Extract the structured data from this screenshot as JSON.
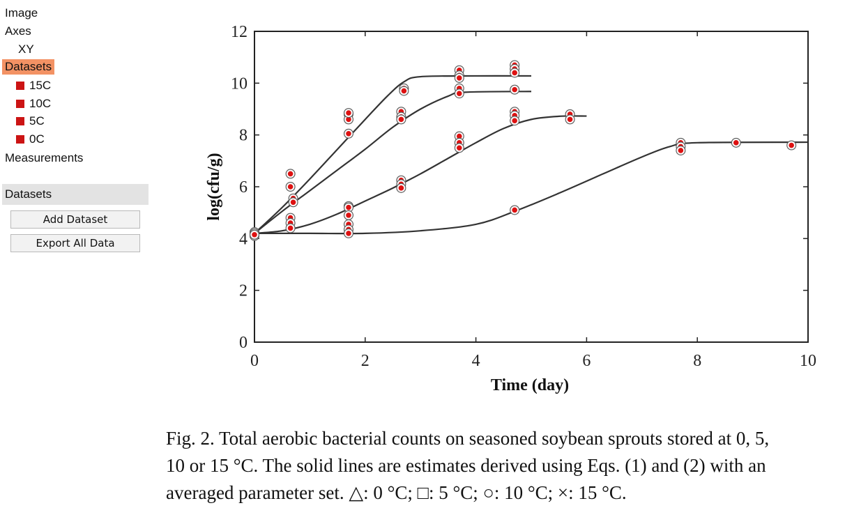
{
  "sidebar": {
    "tree": {
      "image": "Image",
      "axes": "Axes",
      "xy": "XY",
      "datasets": "Datasets",
      "dataset_items": [
        "15C",
        "10C",
        "5C",
        "0C"
      ],
      "measurements": "Measurements"
    },
    "panel_title": "Datasets",
    "add_dataset": "Add Dataset",
    "export_all": "Export All Data",
    "accent_color": "#f39264",
    "dataset_color": "#cc1414"
  },
  "caption": {
    "line1": "Fig. 2. Total aerobic bacterial counts on seasoned soybean sprouts stored at 0, 5,",
    "line2": "10 or 15 °C. The solid lines are estimates derived using Eqs. (1) and (2) with an",
    "line3": "averaged parameter set. △: 0 °C; □: 5 °C; ○: 10 °C; ×: 15 °C."
  },
  "chart_data": {
    "type": "scatter",
    "xlabel": "Time (day)",
    "ylabel": "log(cfu/g)",
    "xlim": [
      0,
      10
    ],
    "ylim": [
      0,
      12
    ],
    "x_ticks": [
      0,
      2,
      4,
      6,
      8,
      10
    ],
    "y_ticks": [
      0,
      2,
      4,
      6,
      8,
      10,
      12
    ],
    "point_color": "#dd1111",
    "series": [
      {
        "id": "15C",
        "curve": [
          [
            0,
            4.2
          ],
          [
            0.5,
            5.2
          ],
          [
            1,
            6.3
          ],
          [
            1.5,
            7.45
          ],
          [
            2,
            8.6
          ],
          [
            2.4,
            9.5
          ],
          [
            2.7,
            10.05
          ],
          [
            3,
            10.25
          ],
          [
            4,
            10.28
          ],
          [
            5,
            10.28
          ]
        ],
        "points": [
          [
            0,
            4.1
          ],
          [
            0,
            4.2
          ],
          [
            0.65,
            6.5
          ],
          [
            0.65,
            6.0
          ],
          [
            1.7,
            8.8
          ],
          [
            1.7,
            8.6
          ],
          [
            1.7,
            8.05
          ],
          [
            2.7,
            9.8
          ],
          [
            2.7,
            9.7
          ],
          [
            3.7,
            10.5
          ],
          [
            3.7,
            10.3
          ],
          [
            3.7,
            10.2
          ],
          [
            4.7,
            10.7
          ],
          [
            4.7,
            10.55
          ],
          [
            4.7,
            10.4
          ]
        ]
      },
      {
        "id": "10C",
        "curve": [
          [
            0,
            4.2
          ],
          [
            0.5,
            5.05
          ],
          [
            1,
            5.85
          ],
          [
            1.5,
            6.65
          ],
          [
            2,
            7.45
          ],
          [
            2.5,
            8.3
          ],
          [
            3,
            9.0
          ],
          [
            3.5,
            9.5
          ],
          [
            3.8,
            9.65
          ],
          [
            5,
            9.68
          ]
        ],
        "points": [
          [
            0,
            4.25
          ],
          [
            0.7,
            5.55
          ],
          [
            0.7,
            5.4
          ],
          [
            1.7,
            8.85
          ],
          [
            2.65,
            8.9
          ],
          [
            2.65,
            8.7
          ],
          [
            2.65,
            8.6
          ],
          [
            3.7,
            9.8
          ],
          [
            3.7,
            9.6
          ],
          [
            4.7,
            9.75
          ]
        ]
      },
      {
        "id": "5C",
        "curve": [
          [
            0,
            4.2
          ],
          [
            0.5,
            4.3
          ],
          [
            1,
            4.55
          ],
          [
            1.5,
            4.95
          ],
          [
            2,
            5.45
          ],
          [
            2.5,
            5.95
          ],
          [
            3,
            6.5
          ],
          [
            3.5,
            7.1
          ],
          [
            4,
            7.7
          ],
          [
            4.5,
            8.25
          ],
          [
            5,
            8.6
          ],
          [
            5.5,
            8.72
          ],
          [
            6,
            8.73
          ]
        ],
        "points": [
          [
            0,
            4.2
          ],
          [
            0.65,
            4.8
          ],
          [
            0.65,
            4.6
          ],
          [
            0.65,
            4.4
          ],
          [
            1.7,
            5.25
          ],
          [
            1.7,
            5.2
          ],
          [
            1.7,
            4.9
          ],
          [
            2.65,
            6.25
          ],
          [
            2.65,
            6.1
          ],
          [
            2.65,
            5.95
          ],
          [
            3.7,
            7.95
          ],
          [
            3.7,
            7.7
          ],
          [
            3.7,
            7.5
          ],
          [
            4.7,
            8.9
          ],
          [
            4.7,
            8.75
          ],
          [
            4.7,
            8.55
          ],
          [
            5.7,
            8.8
          ],
          [
            5.7,
            8.6
          ]
        ]
      },
      {
        "id": "0C",
        "curve": [
          [
            0,
            4.2
          ],
          [
            1,
            4.2
          ],
          [
            2,
            4.2
          ],
          [
            3,
            4.3
          ],
          [
            4,
            4.55
          ],
          [
            4.7,
            5.05
          ],
          [
            5.5,
            5.75
          ],
          [
            6.3,
            6.5
          ],
          [
            7,
            7.15
          ],
          [
            7.5,
            7.55
          ],
          [
            8,
            7.7
          ],
          [
            10,
            7.72
          ]
        ],
        "points": [
          [
            0,
            4.15
          ],
          [
            1.7,
            4.55
          ],
          [
            1.7,
            4.35
          ],
          [
            1.7,
            4.2
          ],
          [
            4.7,
            5.1
          ],
          [
            7.7,
            7.7
          ],
          [
            7.7,
            7.55
          ],
          [
            7.7,
            7.4
          ],
          [
            8.7,
            7.7
          ],
          [
            9.7,
            7.6
          ]
        ]
      }
    ]
  }
}
